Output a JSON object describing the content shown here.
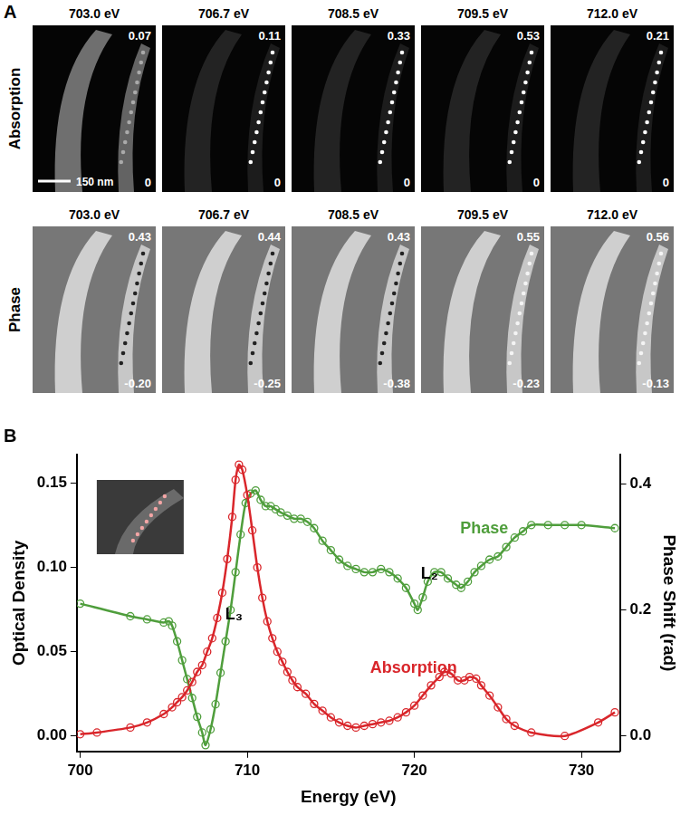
{
  "panel_a": {
    "label": "A",
    "energies": [
      "703.0 eV",
      "706.7 eV",
      "708.5 eV",
      "709.5 eV",
      "712.0 eV"
    ],
    "scale_bar": "150 nm",
    "rows": [
      {
        "name": "Absorption",
        "max_labels": [
          "0.07",
          "0.11",
          "0.33",
          "0.53",
          "0.21"
        ],
        "min_labels": [
          "0",
          "0",
          "0",
          "0",
          "0"
        ]
      },
      {
        "name": "Phase",
        "max_labels": [
          "0.43",
          "0.44",
          "0.43",
          "0.55",
          "0.56"
        ],
        "min_labels": [
          "-0.20",
          "-0.25",
          "-0.38",
          "-0.23",
          "-0.13"
        ]
      }
    ]
  },
  "chart_data": {
    "type": "line",
    "panel_label": "B",
    "x_label": "Energy (eV)",
    "y_label": "Optical Density",
    "y2_label": "Phase Shift (rad)",
    "xlim": [
      699.8,
      732.3
    ],
    "xticks": [
      700,
      710,
      720,
      730
    ],
    "ylim": [
      -0.0092,
      0.167
    ],
    "yticks": [
      {
        "value": 0,
        "label": "0.00"
      },
      {
        "value": 0.05,
        "label": "0.05"
      },
      {
        "value": 0.1,
        "label": "0.10"
      },
      {
        "value": 0.15,
        "label": "0.15"
      }
    ],
    "y2lim": [
      -0.025,
      0.447
    ],
    "y2ticks": [
      {
        "value": 0,
        "label": "0.0"
      },
      {
        "value": 0.2,
        "label": "0.2"
      },
      {
        "value": 0.4,
        "label": "0.4"
      }
    ],
    "grid": false,
    "series": [
      {
        "name": "Absorption",
        "color": "#d9262b",
        "marker": "circle",
        "line_style": "solid",
        "x": [
          700,
          701,
          703,
          704,
          705,
          705.5,
          705.8,
          706.1,
          706.4,
          706.7,
          707,
          707.3,
          707.6,
          707.9,
          708.2,
          708.5,
          708.8,
          709.1,
          709.3,
          709.5,
          709.7,
          710,
          710.3,
          710.6,
          710.9,
          711.2,
          711.5,
          711.8,
          712.1,
          712.4,
          712.7,
          713,
          713.5,
          714,
          714.5,
          715,
          715.5,
          716,
          716.5,
          717,
          717.5,
          718,
          718.5,
          719,
          719.5,
          720,
          720.5,
          721,
          721.5,
          721.8,
          722.2,
          722.6,
          723,
          723.3,
          723.7,
          724,
          724.5,
          725,
          725.5,
          726,
          727,
          729,
          731,
          732
        ],
        "values": [
          0.001,
          0.002,
          0.005,
          0.008,
          0.013,
          0.017,
          0.02,
          0.023,
          0.027,
          0.032,
          0.038,
          0.042,
          0.05,
          0.058,
          0.07,
          0.085,
          0.105,
          0.13,
          0.152,
          0.161,
          0.158,
          0.143,
          0.122,
          0.1,
          0.082,
          0.068,
          0.058,
          0.05,
          0.044,
          0.038,
          0.033,
          0.029,
          0.025,
          0.019,
          0.015,
          0.011,
          0.008,
          0.006,
          0.005,
          0.006,
          0.007,
          0.008,
          0.009,
          0.011,
          0.014,
          0.018,
          0.024,
          0.03,
          0.035,
          0.038,
          0.037,
          0.033,
          0.033,
          0.035,
          0.034,
          0.03,
          0.024,
          0.017,
          0.01,
          0.006,
          0.002,
          0,
          0.008,
          0.014
        ]
      },
      {
        "name": "Phase",
        "color": "#4f9e3c",
        "marker": "circle",
        "line_style": "solid",
        "axis": "y2",
        "x": [
          700,
          703,
          704,
          705,
          705.3,
          705.5,
          705.8,
          706.1,
          706.4,
          706.7,
          707,
          707.3,
          707.5,
          707.8,
          708.1,
          708.4,
          708.7,
          709,
          709.3,
          709.6,
          709.9,
          710.2,
          710.5,
          710.8,
          711.1,
          711.4,
          711.7,
          712,
          712.4,
          712.8,
          713.2,
          713.6,
          714,
          714.5,
          715,
          715.5,
          716,
          716.5,
          717,
          717.5,
          718,
          718.5,
          719,
          719.5,
          720,
          720.2,
          720.5,
          720.8,
          721.2,
          721.6,
          722,
          722.5,
          722.8,
          723.2,
          723.6,
          724,
          724.5,
          725,
          725.5,
          726,
          726.5,
          727,
          728,
          729,
          730,
          732
        ],
        "values": [
          0.21,
          0.19,
          0.185,
          0.18,
          0.182,
          0.175,
          0.15,
          0.12,
          0.09,
          0.06,
          0.03,
          0.005,
          -0.015,
          0.01,
          0.05,
          0.1,
          0.15,
          0.2,
          0.26,
          0.32,
          0.37,
          0.385,
          0.39,
          0.375,
          0.365,
          0.365,
          0.36,
          0.355,
          0.35,
          0.345,
          0.345,
          0.34,
          0.33,
          0.31,
          0.295,
          0.28,
          0.27,
          0.265,
          0.26,
          0.26,
          0.265,
          0.26,
          0.25,
          0.235,
          0.21,
          0.2,
          0.22,
          0.245,
          0.26,
          0.26,
          0.25,
          0.24,
          0.235,
          0.245,
          0.26,
          0.27,
          0.28,
          0.285,
          0.3,
          0.315,
          0.325,
          0.335,
          0.335,
          0.335,
          0.335,
          0.33
        ]
      }
    ],
    "annotations": [
      {
        "text": "L₃",
        "x": 709.2,
        "y": 0.072
      },
      {
        "text": "L₂",
        "x": 720.9,
        "y": 0.096
      }
    ]
  }
}
